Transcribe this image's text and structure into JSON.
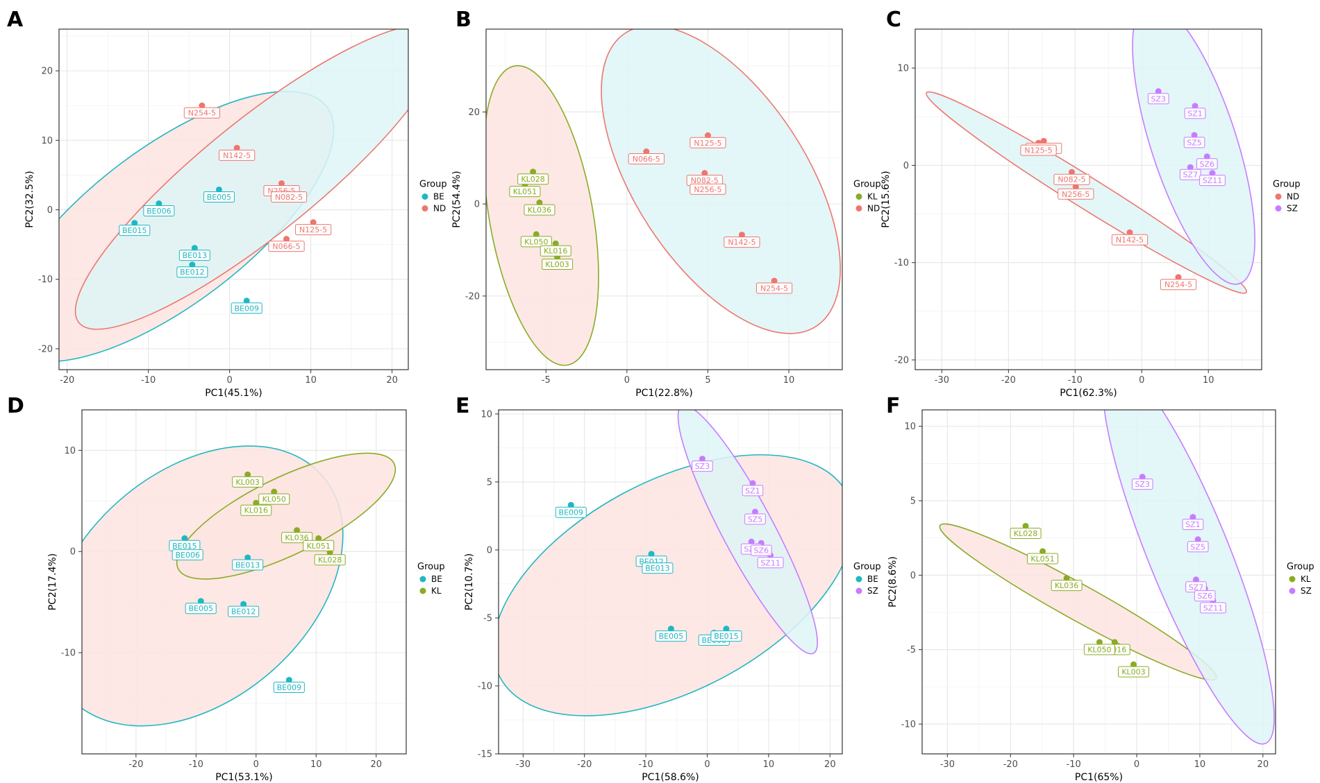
{
  "figure": {
    "group_title": "Group",
    "colors": {
      "BE": "#1fb8c2",
      "ND": "#ee766f",
      "KL": "#8aab25",
      "SZ": "#c77cff"
    },
    "fills": {
      "BE": "#fde4e1",
      "ND": "#def5f7",
      "KL": "#fde4e1",
      "SZ": "#def5f7"
    }
  },
  "chart_data": [
    {
      "panel": "A",
      "type": "scatter",
      "xlabel": "PC1(45.1%)",
      "ylabel": "PC2(32.5%)",
      "xlim": [
        -21,
        22
      ],
      "ylim": [
        -23,
        26
      ],
      "xticks": [
        -20,
        -10,
        0,
        10,
        20
      ],
      "yticks": [
        -20,
        -10,
        0,
        10,
        20
      ],
      "legend": [
        "BE",
        "ND"
      ],
      "series": [
        {
          "name": "BE",
          "points": [
            {
              "label": "BE015",
              "x": -11.7,
              "y": -1.9
            },
            {
              "label": "BE006",
              "x": -8.7,
              "y": 0.9
            },
            {
              "label": "BE005",
              "x": -1.3,
              "y": 2.9
            },
            {
              "label": "BE013",
              "x": -4.3,
              "y": -5.5
            },
            {
              "label": "BE012",
              "x": -4.6,
              "y": -7.9
            },
            {
              "label": "BE009",
              "x": 2.1,
              "y": -13.1
            }
          ],
          "ellipse": {
            "center": [
              -7.6,
              -2.4
            ],
            "axes": [
              24.5,
              11.3
            ],
            "angle": -37
          }
        },
        {
          "name": "ND",
          "points": [
            {
              "label": "N254-5",
              "x": -3.4,
              "y": 15.0
            },
            {
              "label": "N142-5",
              "x": 0.9,
              "y": 8.9
            },
            {
              "label": "N256-5",
              "x": 6.4,
              "y": 3.8
            },
            {
              "label": "N082-5",
              "x": 7.3,
              "y": 2.9
            },
            {
              "label": "N125-5",
              "x": 10.3,
              "y": -1.8
            },
            {
              "label": "N066-5",
              "x": 7.0,
              "y": -4.2
            }
          ],
          "ellipse": {
            "center": [
              3.6,
              4.7
            ],
            "axes": [
              28.5,
              8.2
            ],
            "angle": -39
          }
        }
      ]
    },
    {
      "panel": "B",
      "type": "scatter",
      "xlabel": "PC1(22.8%)",
      "ylabel": "PC2(54.4%)",
      "xlim": [
        -8.7,
        13.3
      ],
      "ylim": [
        -36,
        38
      ],
      "xticks": [
        -5,
        0,
        5,
        10
      ],
      "yticks": [
        -20,
        0,
        20
      ],
      "legend": [
        "KL",
        "ND"
      ],
      "series": [
        {
          "name": "KL",
          "points": [
            {
              "label": "KL028",
              "x": -5.8,
              "y": 7.0
            },
            {
              "label": "KL051",
              "x": -6.3,
              "y": 4.3
            },
            {
              "label": "KL036",
              "x": -5.4,
              "y": 0.3
            },
            {
              "label": "KL050",
              "x": -5.6,
              "y": -6.6
            },
            {
              "label": "KL016",
              "x": -4.4,
              "y": -8.6
            },
            {
              "label": "KL003",
              "x": -4.3,
              "y": -11.5
            }
          ],
          "ellipse": {
            "center": [
              -5.3,
              -2.5
            ],
            "axes": [
              3.2,
              33.0
            ],
            "angle": -10
          }
        },
        {
          "name": "ND",
          "points": [
            {
              "label": "N066-5",
              "x": 1.2,
              "y": 11.4
            },
            {
              "label": "N125-5",
              "x": 5.0,
              "y": 14.9
            },
            {
              "label": "N082-5",
              "x": 4.8,
              "y": 6.7
            },
            {
              "label": "N256-5",
              "x": 5.0,
              "y": 4.8
            },
            {
              "label": "N142-5",
              "x": 7.1,
              "y": -6.7
            },
            {
              "label": "N254-5",
              "x": 9.1,
              "y": -16.7
            }
          ],
          "ellipse": {
            "center": [
              5.8,
              5.3
            ],
            "axes": [
              5.3,
              38.0
            ],
            "angle": -33
          }
        }
      ]
    },
    {
      "panel": "C",
      "type": "scatter",
      "xlabel": "PC1(62.3%)",
      "ylabel": "PC2(15.6%)",
      "xlim": [
        -34,
        18
      ],
      "ylim": [
        -21,
        14
      ],
      "xticks": [
        -30,
        -20,
        -10,
        0,
        10
      ],
      "yticks": [
        -20,
        -10,
        0,
        10
      ],
      "legend": [
        "ND",
        "SZ"
      ],
      "series": [
        {
          "name": "ND",
          "points": [
            {
              "label": "N066-5",
              "x": -14.7,
              "y": 2.5
            },
            {
              "label": "N125-5",
              "x": -15.5,
              "y": 2.3
            },
            {
              "label": "N082-5",
              "x": -10.5,
              "y": -0.7
            },
            {
              "label": "N256-5",
              "x": -9.9,
              "y": -2.2
            },
            {
              "label": "N142-5",
              "x": -1.8,
              "y": -6.9
            },
            {
              "label": "N254-5",
              "x": 5.5,
              "y": -11.5
            }
          ],
          "ellipse": {
            "center": [
              -8.3,
              -2.8
            ],
            "axes": [
              28.3,
              1.6
            ],
            "angle": 32
          }
        },
        {
          "name": "SZ",
          "points": [
            {
              "label": "SZ3",
              "x": 2.5,
              "y": 7.6
            },
            {
              "label": "SZ1",
              "x": 8.0,
              "y": 6.1
            },
            {
              "label": "SZ5",
              "x": 7.9,
              "y": 3.1
            },
            {
              "label": "SZ6",
              "x": 9.8,
              "y": 0.9
            },
            {
              "label": "SZ7",
              "x": 7.3,
              "y": -0.2
            },
            {
              "label": "SZ11",
              "x": 10.6,
              "y": -0.8
            }
          ],
          "ellipse": {
            "center": [
              7.8,
              2.3
            ],
            "axes": [
              6.4,
              15.2
            ],
            "angle": -18
          }
        }
      ]
    },
    {
      "panel": "D",
      "type": "scatter",
      "xlabel": "PC1(53.1%)",
      "ylabel": "PC2(17.4%)",
      "xlim": [
        -29,
        25
      ],
      "ylim": [
        -20,
        14
      ],
      "xticks": [
        -20,
        -10,
        0,
        10,
        20
      ],
      "yticks": [
        -10,
        0,
        10
      ],
      "legend": [
        "BE",
        "KL"
      ],
      "series": [
        {
          "name": "BE",
          "points": [
            {
              "label": "BE015",
              "x": -11.9,
              "y": 1.3
            },
            {
              "label": "BE006",
              "x": -11.4,
              "y": 0.4
            },
            {
              "label": "BE013",
              "x": -1.4,
              "y": -0.6
            },
            {
              "label": "BE005",
              "x": -9.2,
              "y": -4.9
            },
            {
              "label": "BE012",
              "x": -2.1,
              "y": -5.2
            },
            {
              "label": "BE009",
              "x": 5.5,
              "y": -12.7
            }
          ],
          "ellipse": {
            "center": [
              -10.1,
              -3.4
            ],
            "axes": [
              28.0,
              11.3
            ],
            "angle": -41
          }
        },
        {
          "name": "KL",
          "points": [
            {
              "label": "KL003",
              "x": -1.4,
              "y": 7.6
            },
            {
              "label": "KL050",
              "x": 3.0,
              "y": 5.9
            },
            {
              "label": "KL016",
              "x": 0.0,
              "y": 4.8
            },
            {
              "label": "KL036",
              "x": 6.8,
              "y": 2.1
            },
            {
              "label": "KL051",
              "x": 10.4,
              "y": 1.3
            },
            {
              "label": "KL028",
              "x": 12.3,
              "y": -0.1
            }
          ],
          "ellipse": {
            "center": [
              5.0,
              3.5
            ],
            "axes": [
              20.0,
              3.8
            ],
            "angle": -26
          }
        }
      ]
    },
    {
      "panel": "E",
      "type": "scatter",
      "xlabel": "PC1(58.6%)",
      "ylabel": "PC2(10.7%)",
      "xlim": [
        -34,
        22
      ],
      "ylim": [
        -15,
        10.3
      ],
      "xticks": [
        -30,
        -20,
        -10,
        0,
        10,
        20
      ],
      "yticks": [
        -15,
        -10,
        -5,
        0,
        5,
        10
      ],
      "legend": [
        "BE",
        "SZ"
      ],
      "series": [
        {
          "name": "BE",
          "points": [
            {
              "label": "BE009",
              "x": -22.2,
              "y": 3.3
            },
            {
              "label": "BE012",
              "x": -9.1,
              "y": -0.3
            },
            {
              "label": "BE013",
              "x": -8.1,
              "y": -0.8
            },
            {
              "label": "BE005",
              "x": -5.9,
              "y": -5.8
            },
            {
              "label": "BE006",
              "x": 1.1,
              "y": -6.1
            },
            {
              "label": "BE015",
              "x": 3.1,
              "y": -5.8
            }
          ],
          "ellipse": {
            "center": [
              -5.5,
              -2.6
            ],
            "axes": [
              32.0,
              7.7
            ],
            "angle": -28
          }
        },
        {
          "name": "SZ",
          "points": [
            {
              "label": "SZ3",
              "x": -0.8,
              "y": 6.7
            },
            {
              "label": "SZ1",
              "x": 7.4,
              "y": 4.9
            },
            {
              "label": "SZ5",
              "x": 7.8,
              "y": 2.8
            },
            {
              "label": "SZ7",
              "x": 7.2,
              "y": 0.6
            },
            {
              "label": "SZ6",
              "x": 8.8,
              "y": 0.5
            },
            {
              "label": "SZ11",
              "x": 10.3,
              "y": -0.4
            }
          ],
          "ellipse": {
            "center": [
              6.6,
              1.5
            ],
            "axes": [
              4.2,
              10.3
            ],
            "angle": -28
          }
        }
      ]
    },
    {
      "panel": "F",
      "type": "scatter",
      "xlabel": "PC1(65%)",
      "ylabel": "PC2(8.6%)",
      "xlim": [
        -34,
        22
      ],
      "ylim": [
        -12,
        11.1
      ],
      "xticks": [
        -30,
        -20,
        -10,
        0,
        10,
        20
      ],
      "yticks": [
        -10,
        -5,
        0,
        5,
        10
      ],
      "legend": [
        "KL",
        "SZ"
      ],
      "series": [
        {
          "name": "KL",
          "points": [
            {
              "label": "KL028",
              "x": -17.6,
              "y": 3.3
            },
            {
              "label": "KL051",
              "x": -14.9,
              "y": 1.6
            },
            {
              "label": "KL036",
              "x": -11.1,
              "y": -0.2
            },
            {
              "label": "KL016",
              "x": -3.5,
              "y": -4.5
            },
            {
              "label": "KL050",
              "x": -5.9,
              "y": -4.5
            },
            {
              "label": "KL003",
              "x": -0.5,
              "y": -6.0
            }
          ],
          "ellipse": {
            "center": [
              -9.3,
              -1.8
            ],
            "axes": [
              25.0,
              1.2
            ],
            "angle": 29
          }
        },
        {
          "name": "SZ",
          "points": [
            {
              "label": "SZ3",
              "x": 0.9,
              "y": 6.6
            },
            {
              "label": "SZ1",
              "x": 8.9,
              "y": 3.9
            },
            {
              "label": "SZ5",
              "x": 9.7,
              "y": 2.4
            },
            {
              "label": "SZ7",
              "x": 9.4,
              "y": -0.3
            },
            {
              "label": "SZ6",
              "x": 10.8,
              "y": -0.9
            },
            {
              "label": "SZ11",
              "x": 12.1,
              "y": -1.7
            }
          ],
          "ellipse": {
            "center": [
              8.2,
              1.5
            ],
            "axes": [
              6.4,
              13.8
            ],
            "angle": -22
          }
        }
      ]
    }
  ]
}
